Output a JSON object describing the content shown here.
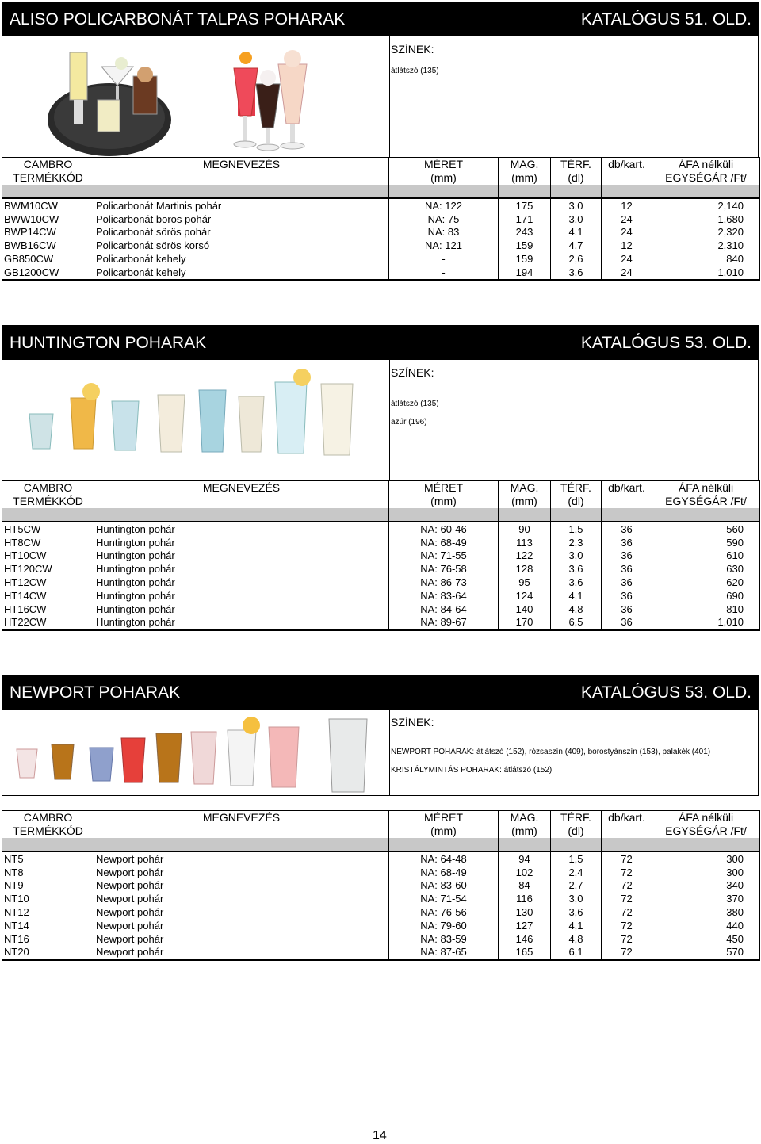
{
  "headers": {
    "code_1": "CAMBRO",
    "code_2": "TERMÉKKÓD",
    "name_1": "MEGNEVEZÉS",
    "name_2": "",
    "size_1": "MÉRET",
    "size_2": "(mm)",
    "height_1": "MAG.",
    "height_2": "(mm)",
    "volume_1": "TÉRF.",
    "volume_2": "(dl)",
    "pack_1": "db/kart.",
    "pack_2": "",
    "price_1": "ÁFA nélküli",
    "price_2": "EGYSÉGÁR /Ft/"
  },
  "sections": [
    {
      "title": "ALISO POLICARBONÁT TALPAS POHARAK",
      "catalog": "KATALÓGUS 51. OLD.",
      "colors_label": "SZÍNEK:",
      "colors": [
        "átlátszó (135)"
      ],
      "rows": [
        {
          "code": "BWM10CW",
          "name": "Policarbonát Martinis pohár",
          "size": "NA: 122",
          "height": "175",
          "volume": "3.0",
          "pack": "12",
          "price": "2,140"
        },
        {
          "code": "BWW10CW",
          "name": "Policarbonát boros pohár",
          "size": "NA: 75",
          "height": "171",
          "volume": "3.0",
          "pack": "24",
          "price": "1,680"
        },
        {
          "code": "BWP14CW",
          "name": "Policarbonát sörös pohár",
          "size": "NA: 83",
          "height": "243",
          "volume": "4.1",
          "pack": "24",
          "price": "2,320"
        },
        {
          "code": "BWB16CW",
          "name": "Policarbonát sörös korsó",
          "size": "NA: 121",
          "height": "159",
          "volume": "4.7",
          "pack": "12",
          "price": "2,310"
        },
        {
          "code": "GB850CW",
          "name": "Policarbonát kehely",
          "size": "-",
          "height": "159",
          "volume": "2,6",
          "pack": "24",
          "price": "840"
        },
        {
          "code": "GB1200CW",
          "name": "Policarbonát kehely",
          "size": "-",
          "height": "194",
          "volume": "3,6",
          "pack": "24",
          "price": "1,010"
        }
      ]
    },
    {
      "title": "HUNTINGTON POHARAK",
      "catalog": "KATALÓGUS 53. OLD.",
      "colors_label": "SZÍNEK:",
      "colors": [
        "átlátszó (135)",
        "azúr (196)"
      ],
      "rows": [
        {
          "code": "HT5CW",
          "name": "Huntington pohár",
          "size": "NA: 60-46",
          "height": "90",
          "volume": "1,5",
          "pack": "36",
          "price": "560"
        },
        {
          "code": "HT8CW",
          "name": "Huntington pohár",
          "size": "NA: 68-49",
          "height": "113",
          "volume": "2,3",
          "pack": "36",
          "price": "590"
        },
        {
          "code": "HT10CW",
          "name": "Huntington pohár",
          "size": "NA: 71-55",
          "height": "122",
          "volume": "3,0",
          "pack": "36",
          "price": "610"
        },
        {
          "code": "HT120CW",
          "name": "Huntington pohár",
          "size": "NA: 76-58",
          "height": "128",
          "volume": "3,6",
          "pack": "36",
          "price": "630"
        },
        {
          "code": "HT12CW",
          "name": "Huntington pohár",
          "size": "NA: 86-73",
          "height": "95",
          "volume": "3,6",
          "pack": "36",
          "price": "620"
        },
        {
          "code": "HT14CW",
          "name": "Huntington pohár",
          "size": "NA: 83-64",
          "height": "124",
          "volume": "4,1",
          "pack": "36",
          "price": "690"
        },
        {
          "code": "HT16CW",
          "name": "Huntington pohár",
          "size": "NA: 84-64",
          "height": "140",
          "volume": "4,8",
          "pack": "36",
          "price": "810"
        },
        {
          "code": "HT22CW",
          "name": "Huntington pohár",
          "size": "NA: 89-67",
          "height": "170",
          "volume": "6,5",
          "pack": "36",
          "price": "1,010"
        }
      ]
    },
    {
      "title": "NEWPORT POHARAK",
      "catalog": "KATALÓGUS 53. OLD.",
      "colors_label": "SZÍNEK:",
      "colors": [
        "NEWPORT POHARAK: átlátszó (152), rózsaszín (409), borostyánszín (153), palakék (401)",
        "KRISTÁLYMINTÁS POHARAK: átlátszó (152)"
      ],
      "rows": [
        {
          "code": "NT5",
          "name": "Newport pohár",
          "size": "NA: 64-48",
          "height": "94",
          "volume": "1,5",
          "pack": "72",
          "price": "300"
        },
        {
          "code": "NT8",
          "name": "Newport pohár",
          "size": "NA: 68-49",
          "height": "102",
          "volume": "2,4",
          "pack": "72",
          "price": "300"
        },
        {
          "code": "NT9",
          "name": "Newport pohár",
          "size": "NA: 83-60",
          "height": "84",
          "volume": "2,7",
          "pack": "72",
          "price": "340"
        },
        {
          "code": "NT10",
          "name": "Newport pohár",
          "size": "NA: 71-54",
          "height": "116",
          "volume": "3,0",
          "pack": "72",
          "price": "370"
        },
        {
          "code": "NT12",
          "name": "Newport pohár",
          "size": "NA: 76-56",
          "height": "130",
          "volume": "3,6",
          "pack": "72",
          "price": "380"
        },
        {
          "code": "NT14",
          "name": "Newport pohár",
          "size": "NA: 79-60",
          "height": "127",
          "volume": "4,1",
          "pack": "72",
          "price": "440"
        },
        {
          "code": "NT16",
          "name": "Newport pohár",
          "size": "NA: 83-59",
          "height": "146",
          "volume": "4,8",
          "pack": "72",
          "price": "450"
        },
        {
          "code": "NT20",
          "name": "Newport pohár",
          "size": "NA: 87-65",
          "height": "165",
          "volume": "6,1",
          "pack": "72",
          "price": "570"
        }
      ]
    }
  ],
  "page_number": "14"
}
